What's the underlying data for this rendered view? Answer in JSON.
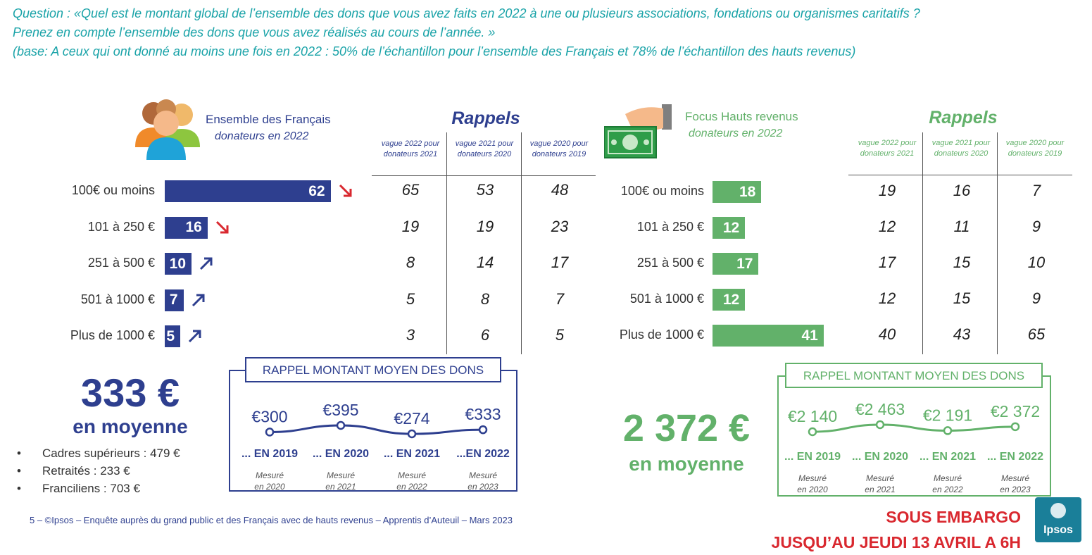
{
  "question": {
    "line1": "Question : «Quel est le montant global de l’ensemble des dons que vous avez faits en 2022 à une ou plusieurs associations, fondations ou organismes caritatifs ?",
    "line2": "Prenez en compte l’ensemble des dons que vous avez réalisés au cours de l’année. »",
    "line3": "(base: A ceux qui ont donné au moins une fois en 2022 : 50% de l’échantillon pour l’ensemble des Français et 78% de l’échantillon des hauts revenus)"
  },
  "colors": {
    "blue": "#2e3f8f",
    "green": "#62b16a",
    "teal": "#1aa3a8",
    "red": "#d9282f"
  },
  "icons": {
    "people": "people-group-icon",
    "money": "hand-money-icon",
    "down": "arrow-down-right-icon",
    "up": "arrow-up-right-icon"
  },
  "chart_data": [
    {
      "type": "bar",
      "title": "Ensemble des Français",
      "subtitle": "donateurs en 2022",
      "categories": [
        "100€ ou moins",
        "101 à 250 €",
        "251 à 500 €",
        "501 à 1000 €",
        "Plus de 1000 €"
      ],
      "values": [
        62,
        16,
        10,
        7,
        5
      ],
      "trends": [
        "down",
        "down",
        "up",
        "up",
        "up"
      ],
      "rappels_title": "Rappels",
      "rappels_headers": [
        "vague 2022 pour donateurs 2021",
        "vague 2021 pour donateurs 2020",
        "vague 2020 pour donateurs 2019"
      ],
      "rappels_values": [
        [
          65,
          53,
          48
        ],
        [
          19,
          19,
          23
        ],
        [
          8,
          14,
          17
        ],
        [
          5,
          8,
          7
        ],
        [
          3,
          6,
          5
        ]
      ],
      "average_value": "333 €",
      "average_label": "en moyenne",
      "breakdown": [
        "Cadres supérieurs : 479 €",
        "Retraités : 233 €",
        "Franciliens : 703 €"
      ],
      "history": {
        "title": "RAPPEL MONTANT MOYEN DES DONS",
        "labels": [
          "€300",
          "€395",
          "€274",
          "€333"
        ],
        "values": [
          300,
          395,
          274,
          333
        ],
        "years": [
          "... EN 2019",
          "... EN 2020",
          "... EN 2021",
          "...EN 2022"
        ],
        "measured": [
          "Mesuré en 2020",
          "Mesuré en 2021",
          "Mesuré en 2022",
          "Mesuré en 2023"
        ]
      }
    },
    {
      "type": "bar",
      "title": "Focus Hauts revenus",
      "subtitle": "donateurs en 2022",
      "categories": [
        "100€ ou moins",
        "101 à 250 €",
        "251 à 500 €",
        "501 à 1000 €",
        "Plus de 1000 €"
      ],
      "values": [
        18,
        12,
        17,
        12,
        41
      ],
      "rappels_title": "Rappels",
      "rappels_headers": [
        "vague 2022 pour donateurs 2021",
        "vague 2021 pour donateurs 2020",
        "vague 2020 pour donateurs 2019"
      ],
      "rappels_values": [
        [
          19,
          16,
          7
        ],
        [
          12,
          11,
          9
        ],
        [
          17,
          15,
          10
        ],
        [
          12,
          15,
          9
        ],
        [
          40,
          43,
          65
        ]
      ],
      "average_value": "2 372 €",
      "average_label": "en moyenne",
      "history": {
        "title": "RAPPEL MONTANT MOYEN DES DONS",
        "labels": [
          "€2 140",
          "€2 463",
          "€2 191",
          "€2 372"
        ],
        "values": [
          2140,
          2463,
          2191,
          2372
        ],
        "years": [
          "... EN 2019",
          "... EN 2020",
          "... EN 2021",
          "... EN 2022"
        ],
        "measured": [
          "Mesuré en 2020",
          "Mesuré en 2021",
          "Mesuré en 2022",
          "Mesuré en 2023"
        ]
      }
    }
  ],
  "footer": "5 –   ©Ipsos – Enquête auprès du grand public et des Français avec de hauts revenus – Apprentis d’Auteuil – Mars 2023",
  "embargo": {
    "line1": "SOUS EMBARGO",
    "line2": "JUSQU’AU JEUDI 13 AVRIL A 6H"
  },
  "logo": "Ipsos"
}
